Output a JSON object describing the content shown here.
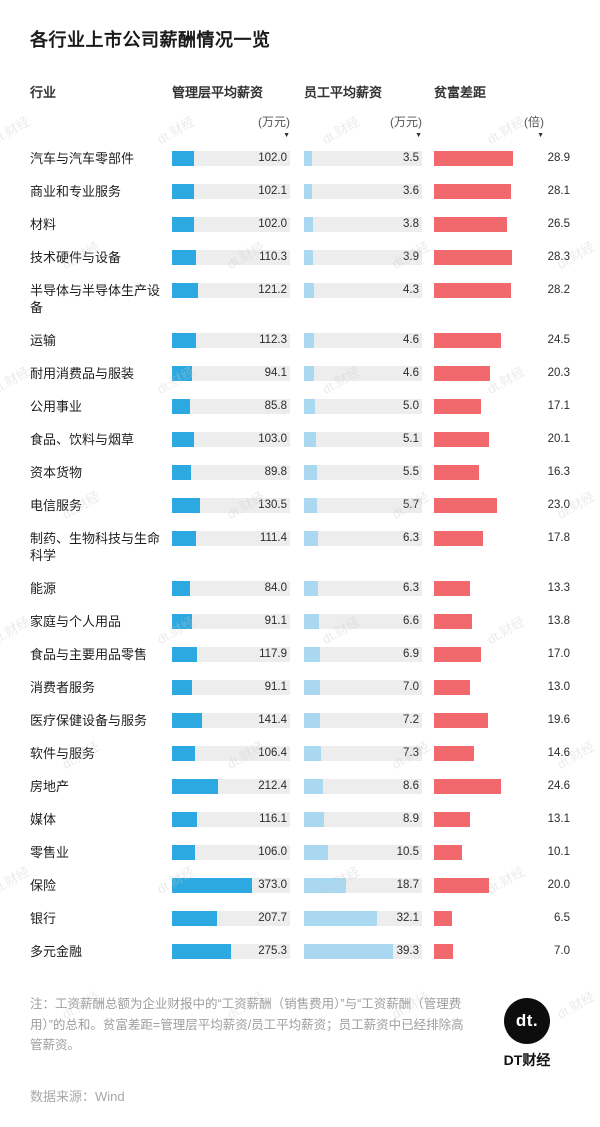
{
  "title": "各行业上市公司薪酬情况一览",
  "watermark_text": "dt.财经",
  "colors": {
    "mgmt_bar": "#2ba9e0",
    "emp_bar": "#a9d8f0",
    "gap_bar": "#f1686d",
    "track": "#ededed"
  },
  "chart_data": {
    "type": "bar",
    "title": "各行业上市公司薪酬情况一览",
    "columns": {
      "industry": "行业",
      "mgmt": "管理层平均薪资",
      "emp": "员工平均薪资",
      "gap": "贫富差距"
    },
    "units": {
      "mgmt": "(万元)",
      "emp": "(万元)",
      "gap": "(倍)"
    },
    "axis_marker": "▼",
    "scales": {
      "mgmt_max": 550,
      "emp_max": 52,
      "gap_max": 35
    },
    "rows": [
      {
        "industry": "汽车与汽车零部件",
        "mgmt": "102.0",
        "emp": "3.5",
        "gap": "28.9"
      },
      {
        "industry": "商业和专业服务",
        "mgmt": "102.1",
        "emp": "3.6",
        "gap": "28.1"
      },
      {
        "industry": "材料",
        "mgmt": "102.0",
        "emp": "3.8",
        "gap": "26.5"
      },
      {
        "industry": "技术硬件与设备",
        "mgmt": "110.3",
        "emp": "3.9",
        "gap": "28.3"
      },
      {
        "industry": "半导体与半导体生产设备",
        "mgmt": "121.2",
        "emp": "4.3",
        "gap": "28.2"
      },
      {
        "industry": "运输",
        "mgmt": "112.3",
        "emp": "4.6",
        "gap": "24.5"
      },
      {
        "industry": "耐用消费品与服装",
        "mgmt": "94.1",
        "emp": "4.6",
        "gap": "20.3"
      },
      {
        "industry": "公用事业",
        "mgmt": "85.8",
        "emp": "5.0",
        "gap": "17.1"
      },
      {
        "industry": "食品、饮料与烟草",
        "mgmt": "103.0",
        "emp": "5.1",
        "gap": "20.1"
      },
      {
        "industry": "资本货物",
        "mgmt": "89.8",
        "emp": "5.5",
        "gap": "16.3"
      },
      {
        "industry": "电信服务",
        "mgmt": "130.5",
        "emp": "5.7",
        "gap": "23.0"
      },
      {
        "industry": "制药、生物科技与生命科学",
        "mgmt": "111.4",
        "emp": "6.3",
        "gap": "17.8"
      },
      {
        "industry": "能源",
        "mgmt": "84.0",
        "emp": "6.3",
        "gap": "13.3"
      },
      {
        "industry": "家庭与个人用品",
        "mgmt": "91.1",
        "emp": "6.6",
        "gap": "13.8"
      },
      {
        "industry": "食品与主要用品零售",
        "mgmt": "117.9",
        "emp": "6.9",
        "gap": "17.0"
      },
      {
        "industry": "消费者服务",
        "mgmt": "91.1",
        "emp": "7.0",
        "gap": "13.0"
      },
      {
        "industry": "医疗保健设备与服务",
        "mgmt": "141.4",
        "emp": "7.2",
        "gap": "19.6"
      },
      {
        "industry": "软件与服务",
        "mgmt": "106.4",
        "emp": "7.3",
        "gap": "14.6"
      },
      {
        "industry": "房地产",
        "mgmt": "212.4",
        "emp": "8.6",
        "gap": "24.6"
      },
      {
        "industry": "媒体",
        "mgmt": "116.1",
        "emp": "8.9",
        "gap": "13.1"
      },
      {
        "industry": "零售业",
        "mgmt": "106.0",
        "emp": "10.5",
        "gap": "10.1"
      },
      {
        "industry": "保险",
        "mgmt": "373.0",
        "emp": "18.7",
        "gap": "20.0"
      },
      {
        "industry": "银行",
        "mgmt": "207.7",
        "emp": "32.1",
        "gap": "6.5"
      },
      {
        "industry": "多元金融",
        "mgmt": "275.3",
        "emp": "39.3",
        "gap": "7.0"
      }
    ]
  },
  "footer": {
    "note": "注：工资薪酬总额为企业财报中的“工资薪酬（销售费用）”与“工资薪酬（管理费用）”的总和。贫富差距=管理层平均薪资/员工平均薪资；员工薪资中已经排除高管薪资。",
    "source": "数据来源：Wind",
    "logo_text": "dt.",
    "brand": "DT财经"
  }
}
